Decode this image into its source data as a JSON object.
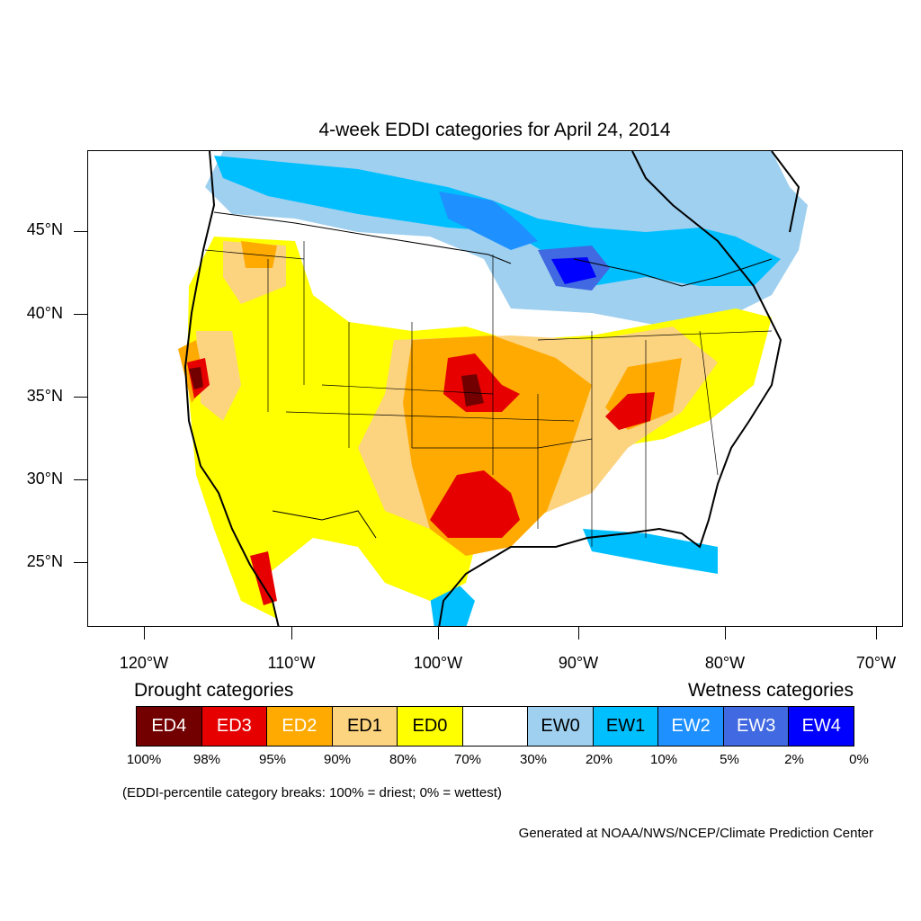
{
  "title": "4-week EDDI categories for April 24, 2014",
  "lat_labels": [
    "45°N",
    "40°N",
    "35°N",
    "30°N",
    "25°N"
  ],
  "lon_labels": [
    "120°W",
    "110°W",
    "100°W",
    "90°W",
    "80°W",
    "70°W"
  ],
  "legend": {
    "drought_heading": "Drought categories",
    "wetness_heading": "Wetness categories",
    "categories": [
      {
        "label": "ED4",
        "color": "#730000",
        "text_color": "#ffffff"
      },
      {
        "label": "ED3",
        "color": "#e60000",
        "text_color": "#ffffff"
      },
      {
        "label": "ED2",
        "color": "#ffaa00",
        "text_color": "#ffffff"
      },
      {
        "label": "ED1",
        "color": "#fcd37f",
        "text_color": "#000000"
      },
      {
        "label": "ED0",
        "color": "#ffff00",
        "text_color": "#000000"
      },
      {
        "label": "",
        "color": "#ffffff",
        "text_color": "#000000"
      },
      {
        "label": "EW0",
        "color": "#9fd0ef",
        "text_color": "#000000"
      },
      {
        "label": "EW1",
        "color": "#00bfff",
        "text_color": "#000000"
      },
      {
        "label": "EW2",
        "color": "#1e90ff",
        "text_color": "#ffffff"
      },
      {
        "label": "EW3",
        "color": "#4169e1",
        "text_color": "#ffffff"
      },
      {
        "label": "EW4",
        "color": "#0000ff",
        "text_color": "#ffffff"
      }
    ],
    "breaks": [
      "100%",
      "98%",
      "95%",
      "90%",
      "80%",
      "70%",
      "30%",
      "20%",
      "10%",
      "5%",
      "2%",
      "0%"
    ]
  },
  "note": "(EDDI-percentile category breaks: 100% = driest; 0% = wettest)",
  "credit": "Generated at NOAA/NWS/NCEP/Climate Prediction Center"
}
